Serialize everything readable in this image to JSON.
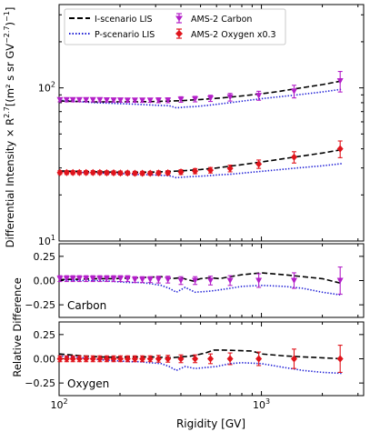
{
  "chart_data": {
    "type": "line",
    "xlabel": "Rigidity [GV]",
    "xscale": "log",
    "xlim": [
      100,
      3200
    ],
    "x_ticks": [
      {
        "value": 100,
        "label": "10",
        "exp": "2"
      },
      {
        "value": 1000,
        "label": "10",
        "exp": "3"
      }
    ],
    "legend_position": "top",
    "legend": [
      {
        "key": "i_lis",
        "label": "I-scenario LIS"
      },
      {
        "key": "p_lis",
        "label": "P-scenario LIS"
      },
      {
        "key": "ams_c",
        "label": "AMS-2 Carbon"
      },
      {
        "key": "ams_o",
        "label": "AMS-2 Oxygen x0.3"
      }
    ],
    "colors": {
      "i_lis": "#000000",
      "p_lis": "#1f1fd6",
      "ams_c": "#b31fc8",
      "ams_o": "#e0141c"
    },
    "panels": {
      "top": {
        "ylabel": "Differential Intensity × R",
        "ylabel_exp": "2.7",
        "ylabel_tail": "[(m² s sr GV",
        "ylabel_tail_exp": "−2.7",
        "ylabel_end": ")",
        "ylabel_exp2": "−1",
        "ylabel_close": "]",
        "yscale": "log",
        "ylim": [
          10,
          350
        ],
        "y_ticks": [
          {
            "value": 10,
            "label": "10",
            "exp": "1"
          },
          {
            "value": 100,
            "label": "10",
            "exp": "2"
          }
        ],
        "series": {
          "i_lis_carbon": {
            "x": [
              100,
              150,
              200,
              250,
              300,
              400,
              500,
              600,
              700,
              800,
              1000,
              1200,
              1500,
              2000,
              2500
            ],
            "y": [
              82,
              81,
              81,
              81,
              81.5,
              82.5,
              84,
              85.5,
              87,
              88.5,
              91.5,
              94.5,
              99,
              105,
              111
            ]
          },
          "p_lis_carbon": {
            "x": [
              100,
              150,
              200,
              250,
              300,
              350,
              380,
              420,
              470,
              550,
              700,
              1000,
              1500,
              2000,
              2500
            ],
            "y": [
              83,
              80,
              79,
              78,
              77,
              76.5,
              74,
              75,
              75.5,
              77,
              80,
              85,
              90,
              94,
              98
            ]
          },
          "i_lis_oxygen": {
            "x": [
              100,
              150,
              200,
              250,
              300,
              400,
              500,
              600,
              700,
              800,
              1000,
              1200,
              1500,
              2000,
              2500
            ],
            "y": [
              28.7,
              28.3,
              28.1,
              28.1,
              28.2,
              28.7,
              29.3,
              30,
              30.8,
              31.5,
              32.8,
              34,
              35.5,
              37.5,
              39.5
            ]
          },
          "p_lis_oxygen": {
            "x": [
              100,
              150,
              200,
              250,
              300,
              350,
              380,
              420,
              470,
              550,
              600,
              700,
              1000,
              1500,
              2000,
              2500
            ],
            "y": [
              28.5,
              27.8,
              27.5,
              27.2,
              27,
              26.7,
              25.9,
              26.2,
              26.4,
              26.7,
              27,
              27.3,
              28.5,
              30,
              31,
              32
            ]
          },
          "ams_carbon": {
            "x": [
              101,
              109,
              117,
              126,
              136,
              147,
              159,
              172,
              186,
              201,
              218,
              237,
              258,
              282,
              310,
              345,
              400,
              470,
              560,
              700,
              970,
              1450,
              2450
            ],
            "y": [
              83.5,
              83.5,
              83.5,
              83.5,
              83.5,
              83.5,
              83.5,
              83.3,
              83.2,
              83.1,
              83,
              83,
              83,
              83,
              83,
              83,
              84,
              84.5,
              85.5,
              87,
              89,
              95,
              111
            ],
            "err": [
              2.5,
              2.5,
              2.5,
              2.5,
              2.5,
              2.5,
              2.5,
              2.5,
              2.5,
              2.5,
              2.5,
              2.5,
              2.5,
              2.5,
              3,
              3,
              3.5,
              3.5,
              4,
              5,
              6,
              9,
              17
            ]
          },
          "ams_oxygen": {
            "x": [
              101,
              109,
              117,
              126,
              136,
              147,
              159,
              172,
              186,
              201,
              218,
              237,
              258,
              282,
              310,
              345,
              400,
              470,
              560,
              700,
              970,
              1450,
              2450
            ],
            "y": [
              28,
              28,
              28,
              28,
              28,
              28,
              28,
              27.9,
              27.9,
              27.8,
              27.8,
              27.7,
              27.7,
              27.7,
              27.8,
              27.9,
              28.2,
              28.6,
              29,
              29.8,
              31.8,
              35.3,
              40
            ],
            "err": [
              0.8,
              0.8,
              0.8,
              0.8,
              0.8,
              0.8,
              0.8,
              0.8,
              0.8,
              0.8,
              0.8,
              0.8,
              0.8,
              0.8,
              0.9,
              0.9,
              1,
              1.1,
              1.2,
              1.5,
              2,
              3,
              5
            ]
          }
        }
      },
      "carbon": {
        "annotation": "Carbon",
        "ylim": [
          -0.38,
          0.38
        ],
        "y_ticks": [
          {
            "value": 0.25,
            "label": "0.25"
          },
          {
            "value": 0,
            "label": "0.00"
          },
          {
            "value": -0.25,
            "label": "−0.25"
          }
        ],
        "series": {
          "i_lis": {
            "x": [
              100,
              130,
              160,
              190,
              220,
              250,
              280,
              320,
              360,
              400,
              430,
              460,
              500,
              560,
              620,
              700,
              800,
              1000,
              1300,
              1600,
              2000,
              2500
            ],
            "y": [
              0.01,
              0.015,
              0.02,
              0.02,
              0.025,
              0.03,
              0.035,
              0.04,
              0.02,
              0.03,
              0.01,
              -0.005,
              0.02,
              0.03,
              0.02,
              0.04,
              0.06,
              0.08,
              0.06,
              0.04,
              0.02,
              -0.03
            ]
          },
          "p_lis": {
            "x": [
              100,
              130,
              160,
              190,
              220,
              250,
              280,
              320,
              350,
              380,
              420,
              470,
              550,
              600,
              700,
              800,
              1000,
              1300,
              1600,
              2000,
              2500
            ],
            "y": [
              0.01,
              0,
              0,
              -0.01,
              -0.02,
              -0.02,
              -0.03,
              -0.05,
              -0.08,
              -0.12,
              -0.07,
              -0.12,
              -0.11,
              -0.1,
              -0.08,
              -0.06,
              -0.05,
              -0.06,
              -0.08,
              -0.12,
              -0.15
            ]
          },
          "ams": {
            "x": [
              101,
              109,
              117,
              126,
              136,
              147,
              159,
              172,
              186,
              201,
              218,
              237,
              258,
              282,
              310,
              345,
              400,
              470,
              560,
              700,
              970,
              1450,
              2450
            ],
            "y": [
              0.02,
              0.02,
              0.02,
              0.02,
              0.02,
              0.02,
              0.02,
              0.02,
              0.02,
              0.02,
              0.02,
              0.01,
              0.01,
              0.01,
              0.01,
              0.01,
              0,
              0,
              0,
              0,
              0,
              0,
              0
            ],
            "err": [
              0.03,
              0.03,
              0.03,
              0.03,
              0.03,
              0.03,
              0.03,
              0.03,
              0.03,
              0.03,
              0.03,
              0.03,
              0.03,
              0.03,
              0.035,
              0.035,
              0.04,
              0.04,
              0.045,
              0.05,
              0.07,
              0.08,
              0.14
            ]
          }
        }
      },
      "oxygen": {
        "annotation": "Oxygen",
        "ylim": [
          -0.38,
          0.38
        ],
        "y_ticks": [
          {
            "value": 0.25,
            "label": "0.25"
          },
          {
            "value": 0,
            "label": "0.00"
          },
          {
            "value": -0.25,
            "label": "−0.25"
          }
        ],
        "series": {
          "i_lis": {
            "x": [
              100,
              130,
              160,
              190,
              220,
              250,
              280,
              320,
              360,
              400,
              440,
              480,
              530,
              580,
              650,
              750,
              900,
              1000,
              1300,
              1600,
              2000,
              2500
            ],
            "y": [
              0.05,
              0.03,
              0.02,
              0.015,
              0.02,
              0.02,
              0.02,
              0.015,
              0.01,
              0.02,
              0.025,
              0.04,
              0.06,
              0.09,
              0.09,
              0.085,
              0.08,
              0.05,
              0.03,
              0.02,
              0.01,
              0
            ]
          },
          "p_lis": {
            "x": [
              100,
              130,
              160,
              190,
              220,
              250,
              280,
              320,
              350,
              380,
              420,
              470,
              530,
              600,
              700,
              800,
              1000,
              1300,
              1600,
              2000,
              2500
            ],
            "y": [
              0.03,
              0.01,
              -0.01,
              -0.02,
              -0.03,
              -0.03,
              -0.04,
              -0.05,
              -0.08,
              -0.12,
              -0.08,
              -0.1,
              -0.09,
              -0.08,
              -0.05,
              -0.04,
              -0.05,
              -0.09,
              -0.12,
              -0.14,
              -0.15
            ]
          },
          "ams": {
            "x": [
              101,
              109,
              117,
              126,
              136,
              147,
              159,
              172,
              186,
              201,
              218,
              237,
              258,
              282,
              310,
              345,
              400,
              470,
              560,
              700,
              970,
              1450,
              2450
            ],
            "y": [
              0,
              0,
              0,
              0,
              0,
              0,
              0,
              0,
              0,
              0,
              0,
              0,
              0,
              0,
              0,
              0,
              0,
              0,
              0,
              0,
              0,
              0,
              0
            ],
            "err": [
              0.03,
              0.03,
              0.03,
              0.03,
              0.03,
              0.03,
              0.03,
              0.03,
              0.03,
              0.03,
              0.03,
              0.03,
              0.03,
              0.03,
              0.035,
              0.035,
              0.04,
              0.04,
              0.05,
              0.06,
              0.07,
              0.1,
              0.14
            ]
          }
        }
      },
      "shared_ylabel": "Relative Difference"
    }
  }
}
